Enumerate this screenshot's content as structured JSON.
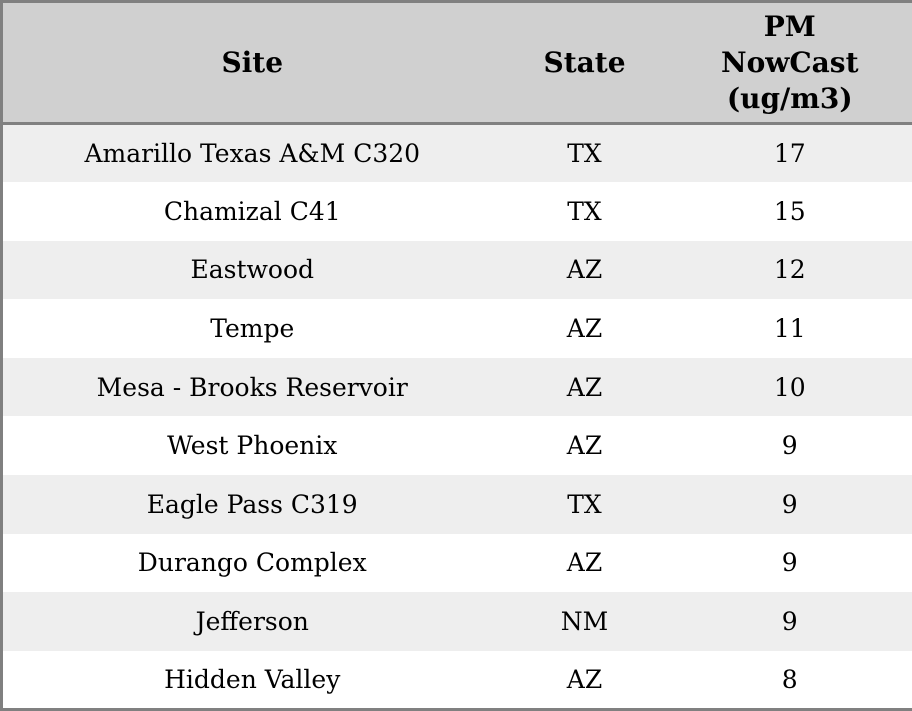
{
  "chart_data": {
    "type": "table",
    "columns": [
      "Site",
      "State",
      "PM NowCast (ug/m3)"
    ],
    "rows": [
      [
        "Amarillo Texas A&M C320",
        "TX",
        17
      ],
      [
        "Chamizal C41",
        "TX",
        15
      ],
      [
        "Eastwood",
        "AZ",
        12
      ],
      [
        "Tempe",
        "AZ",
        11
      ],
      [
        "Mesa - Brooks Reservoir",
        "AZ",
        10
      ],
      [
        "West Phoenix",
        "AZ",
        9
      ],
      [
        "Eagle Pass C319",
        "TX",
        9
      ],
      [
        "Durango Complex",
        "AZ",
        9
      ],
      [
        "Jefferson",
        "NM",
        9
      ],
      [
        "Hidden Valley",
        "AZ",
        8
      ]
    ]
  },
  "header": {
    "site": "Site",
    "state": "State",
    "pm_nowcast": "PM\nNowCast\n(ug/m3)"
  },
  "colors": {
    "border": "#808080",
    "header_bg": "#d0d0d0",
    "row_odd_bg": "#eeeeee",
    "row_even_bg": "#ffffff",
    "text": "#000000"
  }
}
